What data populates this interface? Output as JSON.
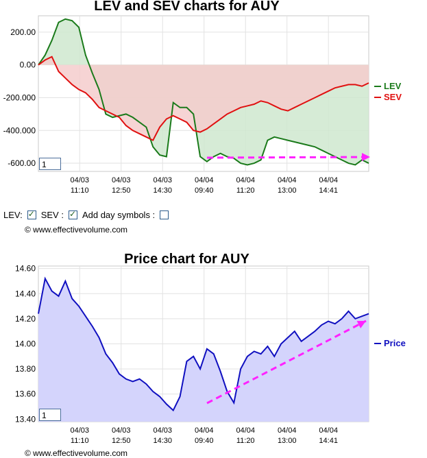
{
  "chart_data": [
    {
      "type": "line",
      "title": "LEV and SEV charts for AUY",
      "ylim": [
        -650,
        300
      ],
      "y_ticks": [
        "200.00",
        "0.00",
        "-200.000",
        "-400.000",
        "-600.00"
      ],
      "y_tick_values": [
        200,
        0,
        -200,
        -400,
        -600
      ],
      "x_ticks": [
        {
          "date": "04/03",
          "time": "11:10"
        },
        {
          "date": "04/03",
          "time": "12:50"
        },
        {
          "date": "04/03",
          "time": "14:30"
        },
        {
          "date": "04/04",
          "time": "09:40"
        },
        {
          "date": "04/04",
          "time": "11:20"
        },
        {
          "date": "04/04",
          "time": "13:00"
        },
        {
          "date": "04/04",
          "time": "14:41"
        }
      ],
      "legend": "right",
      "grid": true,
      "series": [
        {
          "name": "LEV",
          "color": "#1a7a1a",
          "fill": "#cfe8cf",
          "values": [
            0,
            60,
            150,
            260,
            280,
            270,
            230,
            60,
            -50,
            -150,
            -300,
            -320,
            -310,
            -300,
            -320,
            -350,
            -380,
            -500,
            -550,
            -560,
            -230,
            -260,
            -260,
            -300,
            -560,
            -590,
            -560,
            -540,
            -560,
            -570,
            -600,
            -610,
            -600,
            -580,
            -460,
            -440,
            -450,
            -460,
            -470,
            -480,
            -490,
            -500,
            -520,
            -540,
            -560,
            -580,
            -600,
            -610,
            -580,
            -600
          ]
        },
        {
          "name": "SEV",
          "color": "#e01010",
          "fill": "#f5cccc",
          "values": [
            0,
            30,
            50,
            -40,
            -80,
            -120,
            -150,
            -170,
            -210,
            -260,
            -280,
            -300,
            -320,
            -370,
            -400,
            -420,
            -440,
            -460,
            -380,
            -330,
            -310,
            -330,
            -350,
            -400,
            -410,
            -390,
            -360,
            -330,
            -300,
            -280,
            -260,
            -250,
            -240,
            -220,
            -230,
            -250,
            -270,
            -280,
            -260,
            -240,
            -220,
            -200,
            -180,
            -160,
            -140,
            -130,
            -120,
            -120,
            -130,
            -110
          ]
        }
      ]
    },
    {
      "type": "area",
      "title": "Price chart for AUY",
      "ylim": [
        13.38,
        14.62
      ],
      "y_ticks": [
        "14.60",
        "14.40",
        "14.20",
        "14.00",
        "13.80",
        "13.60",
        "13.40"
      ],
      "y_tick_values": [
        14.6,
        14.4,
        14.2,
        14.0,
        13.8,
        13.6,
        13.4
      ],
      "x_ticks": [
        {
          "date": "04/03",
          "time": "11:10"
        },
        {
          "date": "04/03",
          "time": "12:50"
        },
        {
          "date": "04/03",
          "time": "14:30"
        },
        {
          "date": "04/04",
          "time": "09:40"
        },
        {
          "date": "04/04",
          "time": "11:20"
        },
        {
          "date": "04/04",
          "time": "13:00"
        },
        {
          "date": "04/04",
          "time": "14:41"
        }
      ],
      "legend": "right",
      "grid": true,
      "series": [
        {
          "name": "Price",
          "color": "#1010c0",
          "fill": "#d4d4fc",
          "values": [
            14.24,
            14.52,
            14.42,
            14.38,
            14.5,
            14.36,
            14.3,
            14.22,
            14.14,
            14.05,
            13.92,
            13.85,
            13.76,
            13.72,
            13.7,
            13.72,
            13.68,
            13.62,
            13.58,
            13.52,
            13.47,
            13.58,
            13.86,
            13.9,
            13.8,
            13.96,
            13.92,
            13.78,
            13.62,
            13.53,
            13.8,
            13.9,
            13.94,
            13.92,
            13.98,
            13.9,
            14.0,
            14.05,
            14.1,
            14.02,
            14.06,
            14.1,
            14.15,
            14.18,
            14.16,
            14.2,
            14.26,
            14.2,
            14.22,
            14.24
          ]
        }
      ]
    }
  ],
  "controls": {
    "lev_label": "LEV:",
    "sev_label": "SEV :",
    "day_symbols_label": "Add day symbols :",
    "lev_checked": true,
    "sev_checked": true,
    "day_symbols_checked": false
  },
  "copyright": "© www.effectivevolume.com",
  "zoom_value": "1"
}
